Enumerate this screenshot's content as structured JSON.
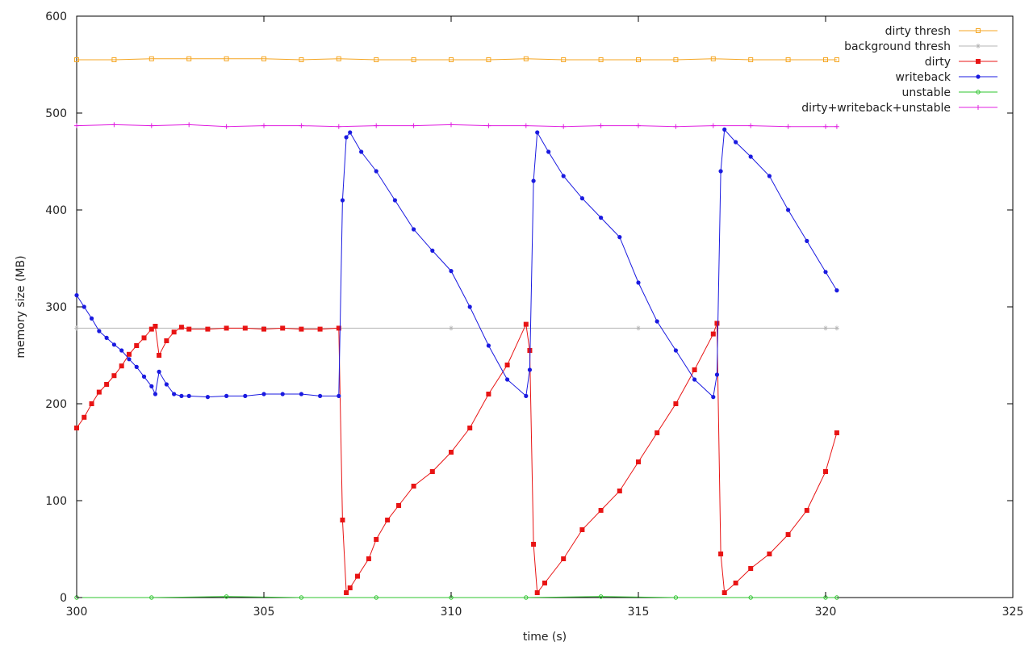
{
  "chart_data": {
    "type": "line",
    "title": "",
    "xlabel": "time (s)",
    "ylabel": "memory size (MB)",
    "xlim": [
      300,
      325
    ],
    "ylim": [
      0,
      600
    ],
    "xticks": [
      300,
      305,
      310,
      315,
      320,
      325
    ],
    "yticks": [
      0,
      100,
      200,
      300,
      400,
      500,
      600
    ],
    "grid": false,
    "legend_position": "top-right",
    "series": [
      {
        "name": "dirty thresh",
        "color": "#f5a623",
        "marker": "square-open",
        "x": [
          300,
          301,
          302,
          303,
          304,
          305,
          306,
          307,
          308,
          309,
          310,
          311,
          312,
          313,
          314,
          315,
          316,
          317,
          318,
          319,
          320,
          320.3
        ],
        "y": [
          555,
          555,
          556,
          556,
          556,
          556,
          555,
          556,
          555,
          555,
          555,
          555,
          556,
          555,
          555,
          555,
          555,
          556,
          555,
          555,
          555,
          555
        ]
      },
      {
        "name": "background thresh",
        "color": "#b5b5b5",
        "marker": "star",
        "x": [
          300,
          305,
          310,
          315,
          320,
          320.3
        ],
        "y": [
          278,
          278,
          278,
          278,
          278,
          278
        ]
      },
      {
        "name": "dirty",
        "color": "#e81414",
        "marker": "square-filled",
        "x": [
          300.0,
          300.2,
          300.4,
          300.6,
          300.8,
          301.0,
          301.2,
          301.4,
          301.6,
          301.8,
          302.0,
          302.1,
          302.2,
          302.4,
          302.6,
          302.8,
          303.0,
          303.5,
          304.0,
          304.5,
          305.0,
          305.5,
          306.0,
          306.5,
          307.0,
          307.1,
          307.2,
          307.3,
          307.5,
          307.8,
          308.0,
          308.3,
          308.6,
          309.0,
          309.5,
          310.0,
          310.5,
          311.0,
          311.5,
          312.0,
          312.1,
          312.2,
          312.3,
          312.5,
          313.0,
          313.5,
          314.0,
          314.5,
          315.0,
          315.5,
          316.0,
          316.5,
          317.0,
          317.1,
          317.2,
          317.3,
          317.6,
          318.0,
          318.5,
          319.0,
          319.5,
          320.0,
          320.3
        ],
        "y": [
          175,
          186,
          200,
          212,
          220,
          229,
          239,
          251,
          260,
          268,
          277,
          280,
          250,
          265,
          274,
          279,
          277,
          277,
          278,
          278,
          277,
          278,
          277,
          277,
          278,
          80,
          5,
          10,
          22,
          40,
          60,
          80,
          95,
          115,
          130,
          150,
          175,
          210,
          240,
          282,
          255,
          55,
          5,
          15,
          40,
          70,
          90,
          110,
          140,
          170,
          200,
          235,
          272,
          283,
          45,
          5,
          15,
          30,
          45,
          65,
          90,
          130,
          170
        ]
      },
      {
        "name": "writeback",
        "color": "#1a1ae0",
        "marker": "circle-filled",
        "x": [
          300.0,
          300.2,
          300.4,
          300.6,
          300.8,
          301.0,
          301.2,
          301.4,
          301.6,
          301.8,
          302.0,
          302.1,
          302.2,
          302.4,
          302.6,
          302.8,
          303.0,
          303.5,
          304.0,
          304.5,
          305.0,
          305.5,
          306.0,
          306.5,
          307.0,
          307.1,
          307.2,
          307.3,
          307.6,
          308.0,
          308.5,
          309.0,
          309.5,
          310.0,
          310.5,
          311.0,
          311.5,
          312.0,
          312.1,
          312.2,
          312.3,
          312.6,
          313.0,
          313.5,
          314.0,
          314.5,
          315.0,
          315.5,
          316.0,
          316.5,
          317.0,
          317.1,
          317.2,
          317.3,
          317.6,
          318.0,
          318.5,
          319.0,
          319.5,
          320.0,
          320.3
        ],
        "y": [
          312,
          300,
          288,
          275,
          268,
          261,
          255,
          246,
          238,
          228,
          218,
          210,
          233,
          220,
          210,
          208,
          208,
          207,
          208,
          208,
          210,
          210,
          210,
          208,
          208,
          410,
          475,
          480,
          460,
          440,
          410,
          380,
          358,
          337,
          300,
          260,
          225,
          208,
          235,
          430,
          480,
          460,
          435,
          412,
          392,
          372,
          325,
          285,
          255,
          225,
          207,
          230,
          440,
          483,
          470,
          455,
          435,
          400,
          368,
          336,
          317
        ]
      },
      {
        "name": "unstable",
        "color": "#2ec42e",
        "marker": "circle-open",
        "x": [
          300,
          302,
          304,
          306,
          308,
          310,
          312,
          314,
          316,
          318,
          320,
          320.3
        ],
        "y": [
          0,
          0,
          1,
          0,
          0,
          0,
          0,
          1,
          0,
          0,
          0,
          0
        ]
      },
      {
        "name": "dirty+writeback+unstable",
        "color": "#e020e0",
        "marker": "plus",
        "x": [
          300,
          301,
          302,
          303,
          304,
          305,
          306,
          307,
          308,
          309,
          310,
          311,
          312,
          313,
          314,
          315,
          316,
          317,
          318,
          319,
          320,
          320.3
        ],
        "y": [
          487,
          488,
          487,
          488,
          486,
          487,
          487,
          486,
          487,
          487,
          488,
          487,
          487,
          486,
          487,
          487,
          486,
          487,
          487,
          486,
          486,
          486
        ]
      }
    ]
  }
}
